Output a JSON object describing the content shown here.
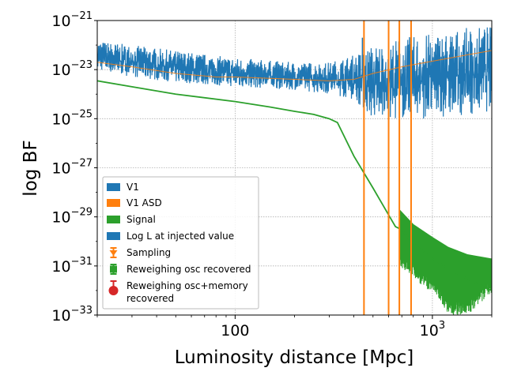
{
  "chart_data": {
    "type": "line",
    "title": "",
    "xlabel": "Luminosity distance [Mpc]",
    "ylabel": "log BF",
    "x_scale": "log",
    "y_scale": "log",
    "xlim": [
      20,
      2000
    ],
    "ylim": [
      1e-33,
      1e-21
    ],
    "grid": true,
    "legend_position": "lower-left",
    "x_ticks": [
      {
        "value": 100,
        "base": "100",
        "exp": ""
      },
      {
        "value": 1000,
        "base": "10",
        "exp": "3"
      }
    ],
    "y_ticks": [
      {
        "value": 1e-21,
        "base": "10",
        "exp": "−21"
      },
      {
        "value": 1e-23,
        "base": "10",
        "exp": "−23"
      },
      {
        "value": 1e-25,
        "base": "10",
        "exp": "−25"
      },
      {
        "value": 1e-27,
        "base": "10",
        "exp": "−27"
      },
      {
        "value": 1e-29,
        "base": "10",
        "exp": "−29"
      },
      {
        "value": 1e-31,
        "base": "10",
        "exp": "−31"
      },
      {
        "value": 1e-33,
        "base": "10",
        "exp": "−33"
      }
    ],
    "colors": {
      "blue": "#1f77b4",
      "orange": "#ff7f0e",
      "green": "#2ca02c",
      "red": "#d62728"
    },
    "series": [
      {
        "name": "V1",
        "color": "#1f77b4",
        "kind": "noisy-band",
        "x": [
          20,
          30,
          50,
          100,
          200,
          300,
          400,
          500,
          700,
          1000,
          1500,
          2000
        ],
        "upper": [
          1.5e-22,
          1e-22,
          6e-23,
          3e-23,
          2e-23,
          2e-23,
          4e-23,
          1e-22,
          2e-22,
          3e-22,
          5e-22,
          6e-22
        ],
        "lower": [
          1e-23,
          5e-24,
          3e-24,
          2e-24,
          1.5e-24,
          1e-24,
          6e-25,
          1e-25,
          1e-25,
          1e-25,
          1.5e-25,
          2e-25
        ]
      },
      {
        "name": "V1 ASD",
        "color": "#ff7f0e",
        "kind": "line",
        "x": [
          20,
          30,
          50,
          80,
          100,
          200,
          300,
          400,
          500,
          700,
          1000,
          1500,
          2000
        ],
        "y": [
          2e-23,
          1.3e-23,
          7e-24,
          5e-24,
          5e-24,
          4e-24,
          3.5e-24,
          4e-24,
          7e-24,
          1.3e-23,
          2.2e-23,
          4e-23,
          6e-23
        ]
      },
      {
        "name": "Signal",
        "color": "#2ca02c",
        "kind": "line-with-band",
        "x": [
          20,
          30,
          50,
          100,
          150,
          200,
          250,
          300,
          330,
          400,
          500,
          600,
          650,
          700,
          800,
          1000,
          1200,
          1500,
          2000
        ],
        "y": [
          3.5e-24,
          2e-24,
          1e-24,
          5e-25,
          3e-25,
          2e-25,
          1.5e-25,
          1e-25,
          7e-26,
          3e-27,
          1.5e-28,
          1.2e-29,
          4e-30,
          3e-30,
          8e-31,
          2e-31,
          8e-32,
          3e-32,
          1e-32
        ],
        "band_start_x": 650,
        "band_upper": [
          2e-29,
          5e-30,
          1.5e-30,
          6e-31,
          3e-31,
          2e-31
        ],
        "band_lower": [
          1e-31,
          3e-32,
          8e-33,
          1e-33,
          1e-33,
          8e-33
        ],
        "band_x": [
          680,
          800,
          1000,
          1200,
          1500,
          2000
        ]
      },
      {
        "name": "Log L at injected value",
        "color": "#1f77b4",
        "kind": "legend-only"
      },
      {
        "name": "Sampling",
        "color": "#ff7f0e",
        "kind": "vline",
        "x": 450
      },
      {
        "name": "Reweighing osc recovered",
        "color": "#2ca02c",
        "kind": "legend-only"
      },
      {
        "name": "Reweighing osc+memory\n recovered",
        "color": "#d62728",
        "kind": "legend-only"
      }
    ],
    "vlines": [
      {
        "x": 450,
        "color": "#ff7f0e"
      },
      {
        "x": 600,
        "color": "#ff7f0e"
      },
      {
        "x": 680,
        "color": "#ff7f0e"
      },
      {
        "x": 780,
        "color": "#ff7f0e"
      }
    ],
    "spike": {
      "x": 450,
      "from": 6e-24,
      "to": 2e-22,
      "color": "#1f77b4"
    },
    "legend": [
      {
        "label": "V1",
        "marker": "patch",
        "color": "#1f77b4"
      },
      {
        "label": "V1 ASD",
        "marker": "patch",
        "color": "#ff7f0e"
      },
      {
        "label": "Signal",
        "marker": "patch",
        "color": "#2ca02c"
      },
      {
        "label": "Log L at injected value",
        "marker": "patch",
        "color": "#1f77b4"
      },
      {
        "label": "Sampling",
        "marker": "errorbar",
        "color": "#ff7f0e"
      },
      {
        "label": "Reweighing osc recovered",
        "marker": "errorbar-square",
        "color": "#2ca02c"
      },
      {
        "label": "Reweighing osc+memory",
        "label2": " recovered",
        "marker": "errorbar-dot",
        "color": "#d62728"
      }
    ]
  }
}
